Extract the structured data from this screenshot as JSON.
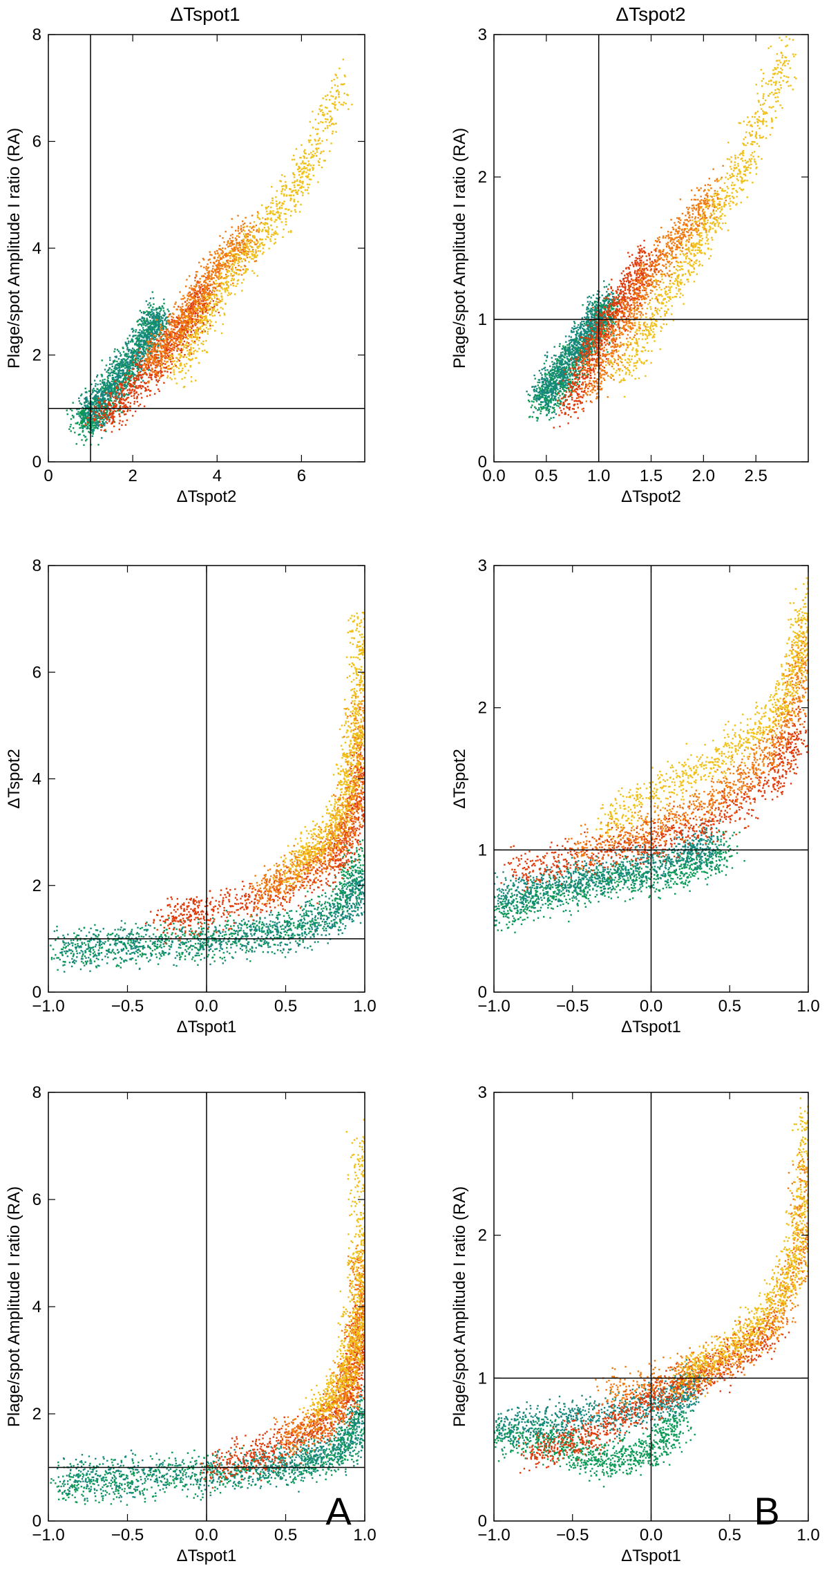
{
  "column_titles": [
    "ΔTspot1",
    "ΔTspot2"
  ],
  "panel_tags": {
    "A": "A",
    "B": "B"
  },
  "colors": {
    "green": "#0a9a55",
    "teal": "#17877e",
    "red": "#e03a0a",
    "orange": "#f07a10",
    "yellow": "#f0c018",
    "axis": "#000000"
  },
  "chart_data": [
    {
      "id": "p1",
      "type": "scatter",
      "xlabel": "ΔTspot2",
      "ylabel": "Plage/spot Amplitude I ratio (RA)",
      "xlim": [
        0,
        7.5
      ],
      "ylim": [
        0,
        8
      ],
      "xticks": [
        0,
        2,
        4,
        6
      ],
      "xtick_labels": [
        "0",
        "2",
        "4",
        "6"
      ],
      "yticks": [
        0,
        2,
        4,
        6,
        8
      ],
      "ytick_labels": [
        "0",
        "2",
        "4",
        "6",
        "8"
      ],
      "ref_lines": {
        "x": 1,
        "y": 1
      },
      "series": [
        {
          "name": "green",
          "color": "#0a9a55",
          "x": [
            0.8,
            1.0,
            1.3,
            1.6,
            2.0,
            2.4,
            2.6
          ],
          "y": [
            0.7,
            0.85,
            1.1,
            1.45,
            1.9,
            2.4,
            2.8
          ]
        },
        {
          "name": "teal",
          "color": "#17877e",
          "x": [
            0.9,
            1.2,
            1.6,
            2.0,
            2.4,
            2.6
          ],
          "y": [
            0.8,
            1.1,
            1.5,
            1.9,
            2.4,
            2.7
          ]
        },
        {
          "name": "red",
          "color": "#e03a0a",
          "x": [
            1.2,
            1.8,
            2.4,
            3.0,
            3.4,
            3.8
          ],
          "y": [
            0.8,
            1.2,
            1.7,
            2.3,
            2.7,
            3.2
          ]
        },
        {
          "name": "orange",
          "color": "#f07a10",
          "x": [
            2.4,
            3.0,
            3.6,
            4.2,
            4.8
          ],
          "y": [
            1.8,
            2.4,
            3.1,
            3.8,
            4.3
          ]
        },
        {
          "name": "yellow",
          "color": "#f0c018",
          "x": [
            3.0,
            3.8,
            4.6,
            5.4,
            6.2,
            7.0
          ],
          "y": [
            1.6,
            2.8,
            3.8,
            4.6,
            5.6,
            7.2
          ]
        }
      ]
    },
    {
      "id": "p2",
      "type": "scatter",
      "xlabel": "ΔTspot2",
      "ylabel": "Plage/spot Amplitude I ratio (RA)",
      "xlim": [
        0,
        3.0
      ],
      "ylim": [
        0,
        3
      ],
      "xticks": [
        0,
        0.5,
        1.0,
        1.5,
        2.0,
        2.5
      ],
      "xtick_labels": [
        "0.0",
        "0.5",
        "1.0",
        "1.5",
        "2.0",
        "2.5"
      ],
      "yticks": [
        0,
        1,
        2,
        3
      ],
      "ytick_labels": [
        "0",
        "1",
        "2",
        "3"
      ],
      "ref_lines": {
        "x": 1,
        "y": 1
      },
      "series": [
        {
          "name": "green",
          "color": "#0a9a55",
          "x": [
            0.45,
            0.6,
            0.8,
            1.0,
            1.1
          ],
          "y": [
            0.4,
            0.55,
            0.75,
            0.95,
            1.1
          ]
        },
        {
          "name": "teal",
          "color": "#17877e",
          "x": [
            0.45,
            0.6,
            0.8,
            0.95,
            1.05
          ],
          "y": [
            0.45,
            0.6,
            0.8,
            0.95,
            1.1
          ]
        },
        {
          "name": "red",
          "color": "#e03a0a",
          "x": [
            0.7,
            0.9,
            1.1,
            1.3,
            1.5
          ],
          "y": [
            0.35,
            0.7,
            1.0,
            1.2,
            1.45
          ]
        },
        {
          "name": "orange",
          "color": "#f07a10",
          "x": [
            0.9,
            1.2,
            1.5,
            1.8,
            2.1
          ],
          "y": [
            0.5,
            0.9,
            1.3,
            1.6,
            1.9
          ]
        },
        {
          "name": "yellow",
          "color": "#f0c018",
          "x": [
            1.2,
            1.6,
            2.0,
            2.4,
            2.8
          ],
          "y": [
            0.6,
            1.1,
            1.6,
            2.1,
            2.9
          ]
        }
      ]
    },
    {
      "id": "p3",
      "type": "scatter",
      "xlabel": "ΔTspot1",
      "ylabel": "ΔTspot2",
      "xlim": [
        -1.0,
        1.0
      ],
      "ylim": [
        0,
        8
      ],
      "xticks": [
        -1.0,
        -0.5,
        0.0,
        0.5,
        1.0
      ],
      "xtick_labels": [
        "−1.0",
        "−0.5",
        "0.0",
        "0.5",
        "1.0"
      ],
      "yticks": [
        0,
        2,
        4,
        6,
        8
      ],
      "ytick_labels": [
        "0",
        "2",
        "4",
        "6",
        "8"
      ],
      "ref_lines": {
        "x": 0,
        "y": 1
      },
      "series": [
        {
          "name": "green",
          "color": "#0a9a55",
          "x": [
            -0.95,
            -0.5,
            0.0,
            0.5,
            0.85,
            0.97
          ],
          "y": [
            0.75,
            0.85,
            0.95,
            1.15,
            1.6,
            2.6
          ]
        },
        {
          "name": "teal",
          "color": "#17877e",
          "x": [
            -0.9,
            -0.4,
            0.2,
            0.6,
            0.9,
            1.0
          ],
          "y": [
            0.8,
            0.9,
            1.0,
            1.2,
            1.5,
            2.2
          ]
        },
        {
          "name": "red",
          "color": "#e03a0a",
          "x": [
            -0.3,
            0.0,
            0.4,
            0.8,
            0.95,
            1.0
          ],
          "y": [
            1.3,
            1.5,
            1.8,
            2.4,
            3.2,
            4.5
          ]
        },
        {
          "name": "orange",
          "color": "#f07a10",
          "x": [
            0.3,
            0.6,
            0.85,
            0.95,
            1.0
          ],
          "y": [
            1.8,
            2.3,
            2.9,
            3.9,
            5.5
          ]
        },
        {
          "name": "yellow",
          "color": "#f0c018",
          "x": [
            0.5,
            0.8,
            0.92,
            0.97,
            1.0
          ],
          "y": [
            2.3,
            3.0,
            4.2,
            5.5,
            7.0
          ]
        }
      ]
    },
    {
      "id": "p4",
      "type": "scatter",
      "xlabel": "ΔTspot1",
      "ylabel": "ΔTspot2",
      "xlim": [
        -1.0,
        1.0
      ],
      "ylim": [
        0,
        3
      ],
      "xticks": [
        -1.0,
        -0.5,
        0.0,
        0.5,
        1.0
      ],
      "xtick_labels": [
        "−1.0",
        "−0.5",
        "0.0",
        "0.5",
        "1.0"
      ],
      "yticks": [
        0,
        1,
        2,
        3
      ],
      "ytick_labels": [
        "0",
        "1",
        "2",
        "3"
      ],
      "ref_lines": {
        "x": 0,
        "y": 1
      },
      "series": [
        {
          "name": "green",
          "color": "#0a9a55",
          "x": [
            -1.0,
            -0.6,
            -0.2,
            0.2,
            0.5
          ],
          "y": [
            0.55,
            0.7,
            0.8,
            0.85,
            1.0
          ]
        },
        {
          "name": "teal",
          "color": "#17877e",
          "x": [
            -1.0,
            -0.6,
            -0.2,
            0.2,
            0.4
          ],
          "y": [
            0.65,
            0.75,
            0.85,
            0.95,
            1.05
          ]
        },
        {
          "name": "red",
          "color": "#e03a0a",
          "x": [
            -0.9,
            -0.4,
            0.0,
            0.4,
            0.8,
            0.95
          ],
          "y": [
            0.85,
            0.95,
            1.05,
            1.2,
            1.5,
            1.9
          ]
        },
        {
          "name": "orange",
          "color": "#f07a10",
          "x": [
            -0.5,
            0.0,
            0.4,
            0.7,
            0.9,
            1.0
          ],
          "y": [
            1.0,
            1.15,
            1.35,
            1.6,
            2.0,
            2.5
          ]
        },
        {
          "name": "yellow",
          "color": "#f0c018",
          "x": [
            -0.3,
            0.1,
            0.5,
            0.8,
            0.95,
            1.0
          ],
          "y": [
            1.2,
            1.45,
            1.7,
            1.95,
            2.4,
            2.8
          ]
        }
      ]
    },
    {
      "id": "p5",
      "type": "scatter",
      "xlabel": "ΔTspot1",
      "ylabel": "Plage/spot Amplitude I ratio (RA)",
      "xlim": [
        -1.0,
        1.0
      ],
      "ylim": [
        0,
        8
      ],
      "xticks": [
        -1.0,
        -0.5,
        0.0,
        0.5,
        1.0
      ],
      "xtick_labels": [
        "−1.0",
        "−0.5",
        "0.0",
        "0.5",
        "1.0"
      ],
      "yticks": [
        0,
        2,
        4,
        6,
        8
      ],
      "ytick_labels": [
        "0",
        "2",
        "4",
        "6",
        "8"
      ],
      "ref_lines": {
        "x": 0,
        "y": 1
      },
      "series": [
        {
          "name": "green",
          "color": "#0a9a55",
          "x": [
            -0.95,
            -0.5,
            0.0,
            0.5,
            0.85,
            0.97
          ],
          "y": [
            0.7,
            0.75,
            0.85,
            1.0,
            1.3,
            2.0
          ]
        },
        {
          "name": "teal",
          "color": "#17877e",
          "x": [
            -0.9,
            -0.4,
            0.2,
            0.6,
            0.9,
            1.0
          ],
          "y": [
            0.8,
            0.85,
            0.95,
            1.1,
            1.4,
            2.2
          ]
        },
        {
          "name": "red",
          "color": "#e03a0a",
          "x": [
            0.0,
            0.4,
            0.7,
            0.9,
            0.97,
            1.0
          ],
          "y": [
            1.0,
            1.3,
            1.7,
            2.3,
            3.0,
            4.0
          ]
        },
        {
          "name": "orange",
          "color": "#f07a10",
          "x": [
            0.5,
            0.8,
            0.92,
            0.98,
            1.0
          ],
          "y": [
            1.5,
            2.0,
            2.8,
            3.8,
            5.0
          ]
        },
        {
          "name": "yellow",
          "color": "#f0c018",
          "x": [
            0.7,
            0.9,
            0.96,
            0.99,
            1.0
          ],
          "y": [
            2.0,
            2.8,
            3.8,
            5.2,
            7.2
          ]
        }
      ]
    },
    {
      "id": "p6",
      "type": "scatter",
      "xlabel": "ΔTspot1",
      "ylabel": "Plage/spot Amplitude I ratio (RA)",
      "xlim": [
        -1.0,
        1.0
      ],
      "ylim": [
        0,
        3
      ],
      "xticks": [
        -1.0,
        -0.5,
        0.0,
        0.5,
        1.0
      ],
      "xtick_labels": [
        "−1.0",
        "−0.5",
        "0.0",
        "0.5",
        "1.0"
      ],
      "yticks": [
        0,
        1,
        2,
        3
      ],
      "ytick_labels": [
        "0",
        "1",
        "2",
        "3"
      ],
      "ref_lines": {
        "x": 0,
        "y": 1
      },
      "series": [
        {
          "name": "green",
          "color": "#0a9a55",
          "x": [
            -1.0,
            -0.6,
            -0.3,
            0.0,
            0.2
          ],
          "y": [
            0.6,
            0.55,
            0.4,
            0.5,
            0.7
          ]
        },
        {
          "name": "teal",
          "color": "#17877e",
          "x": [
            -1.0,
            -0.6,
            -0.2,
            0.1,
            0.3
          ],
          "y": [
            0.65,
            0.7,
            0.75,
            0.85,
            0.95
          ]
        },
        {
          "name": "red",
          "color": "#e03a0a",
          "x": [
            -0.8,
            -0.4,
            0.0,
            0.4,
            0.8
          ],
          "y": [
            0.45,
            0.6,
            0.85,
            1.05,
            1.35
          ]
        },
        {
          "name": "orange",
          "color": "#f07a10",
          "x": [
            -0.3,
            0.2,
            0.5,
            0.8,
            0.95,
            1.0
          ],
          "y": [
            0.9,
            1.0,
            1.15,
            1.4,
            1.9,
            2.5
          ]
        },
        {
          "name": "yellow",
          "color": "#f0c018",
          "x": [
            0.2,
            0.5,
            0.75,
            0.9,
            0.97,
            1.0
          ],
          "y": [
            1.0,
            1.2,
            1.45,
            1.75,
            2.2,
            2.9
          ]
        }
      ]
    }
  ]
}
